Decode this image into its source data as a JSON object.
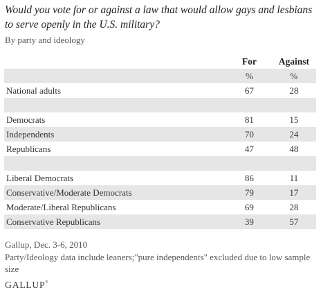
{
  "title": "Would you vote for or against a law that would allow gays and lesbians to serve openly in the U.S. military?",
  "subtitle": "By party and ideology",
  "columns": {
    "for": "For",
    "against": "Against",
    "unit_for": "%",
    "unit_against": "%"
  },
  "rows": {
    "national": {
      "label": "National adults",
      "for": "67",
      "against": "28"
    },
    "democrats": {
      "label": "Democrats",
      "for": "81",
      "against": "15"
    },
    "independents": {
      "label": "Independents",
      "for": "70",
      "against": "24"
    },
    "republicans": {
      "label": "Republicans",
      "for": "47",
      "against": "48"
    },
    "liberal_democrats": {
      "label": "Liberal Democrats",
      "for": "86",
      "against": "11"
    },
    "conservative_moderate_democrats": {
      "label": "Conservative/Moderate Democrats",
      "for": "79",
      "against": "17"
    },
    "moderate_liberal_republicans": {
      "label": "Moderate/Liberal Republicans",
      "for": "69",
      "against": "28"
    },
    "conservative_republicans": {
      "label": "Conservative Republicans",
      "for": "39",
      "against": "57"
    }
  },
  "footer": {
    "source": "Gallup, Dec. 3-6, 2010",
    "note": "Party/Ideology data include leaners;\"pure independents\" excluded due to low sample size"
  },
  "logo": {
    "text": "GALLUP",
    "mark": "®"
  }
}
